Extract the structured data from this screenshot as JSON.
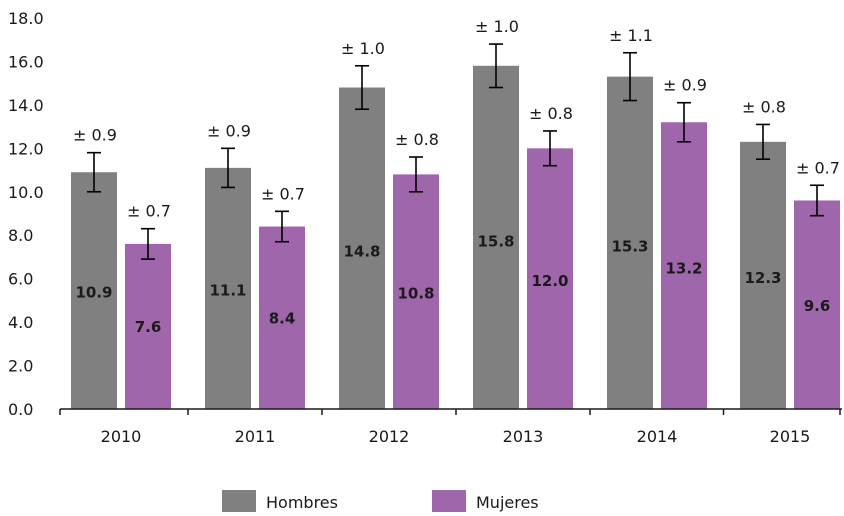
{
  "chart_data": {
    "type": "bar",
    "categories": [
      "2010",
      "2011",
      "2012",
      "2013",
      "2014",
      "2015"
    ],
    "series": [
      {
        "name": "Hombres",
        "color": "#808080",
        "values": [
          10.9,
          11.1,
          14.8,
          15.8,
          15.3,
          12.3
        ],
        "value_labels": [
          "10.9",
          "11.1",
          "14.8",
          "15.8",
          "15.3",
          "12.3"
        ],
        "errors": [
          0.9,
          0.9,
          1.0,
          1.0,
          1.1,
          0.8
        ],
        "error_labels": [
          "0.9",
          "0.9",
          "1.0",
          "1.0",
          "1.1",
          "0.8"
        ]
      },
      {
        "name": "Mujeres",
        "color": "#a066ab",
        "values": [
          7.6,
          8.4,
          10.8,
          12.0,
          13.2,
          9.6
        ],
        "value_labels": [
          "7.6",
          "8.4",
          "10.8",
          "12.0",
          "13.2",
          "9.6"
        ],
        "errors": [
          0.7,
          0.7,
          0.8,
          0.8,
          0.9,
          0.7
        ],
        "error_labels": [
          "0.7",
          "0.7",
          "0.8",
          "0.8",
          "0.9",
          "0.7"
        ]
      }
    ],
    "error_prefix": "±",
    "ylim": [
      0,
      18
    ],
    "yticks": [
      "0.0",
      "2.0",
      "4.0",
      "6.0",
      "8.0",
      "10.0",
      "12.0",
      "14.0",
      "16.0",
      "18.0"
    ],
    "legend_position": "bottom-center",
    "grid": false,
    "title": "",
    "xlabel": "",
    "ylabel": ""
  }
}
